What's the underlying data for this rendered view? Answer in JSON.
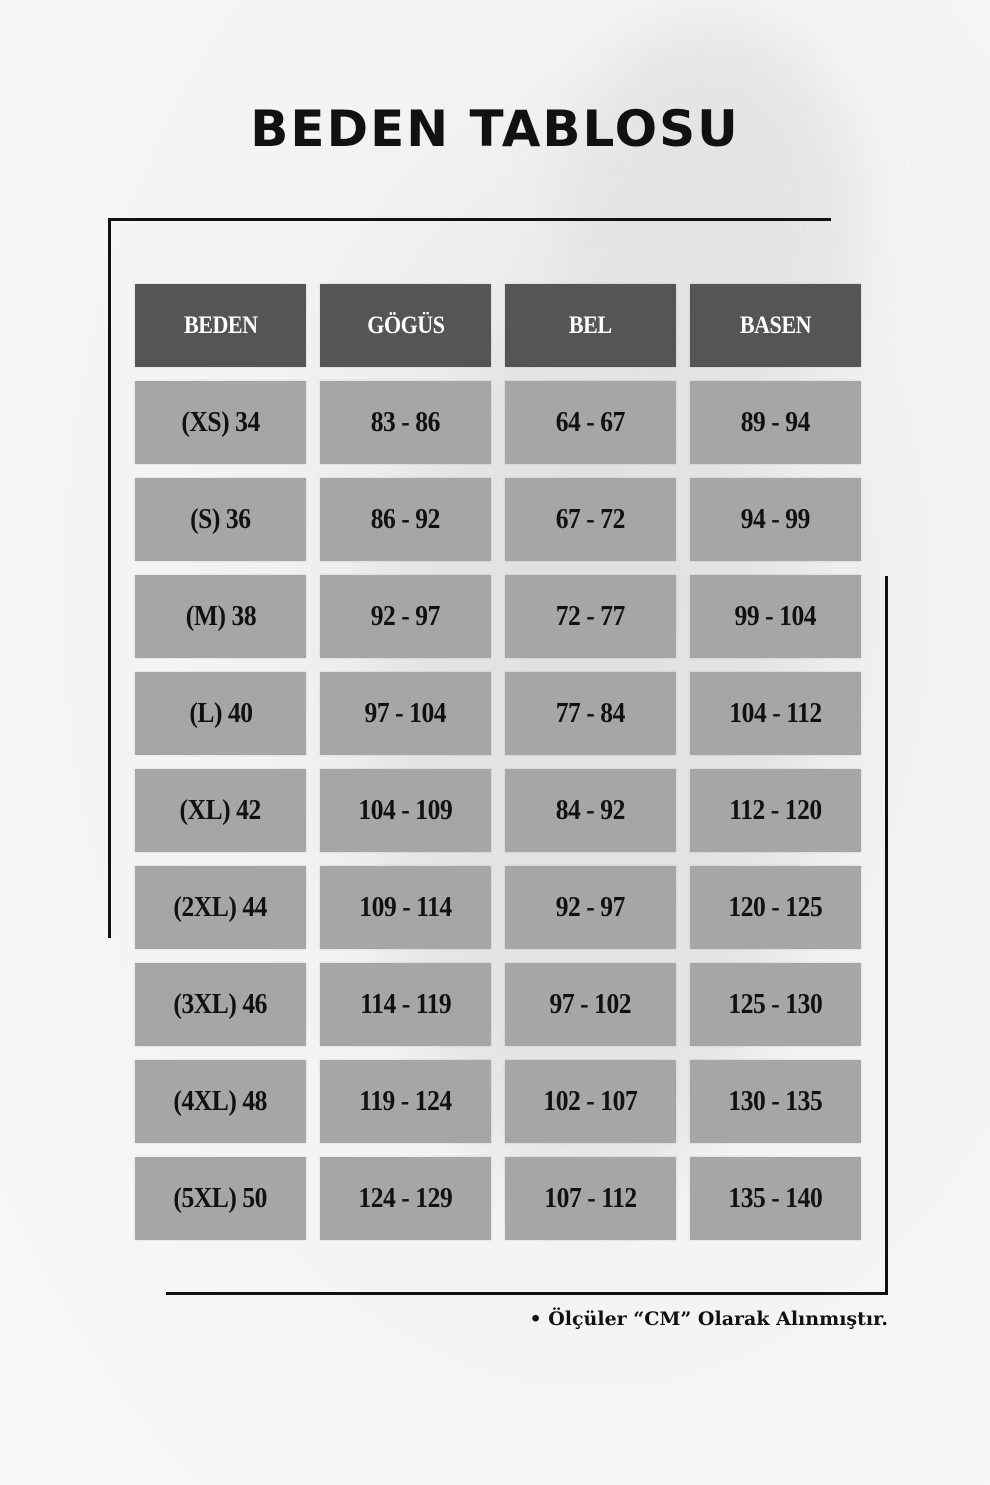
{
  "title": "BEDEN TABLOSU",
  "table": {
    "headers": [
      "BEDEN",
      "GÖGÜS",
      "BEL",
      "BASEN"
    ],
    "rows": [
      [
        "(XS) 34",
        "83 - 86",
        "64 - 67",
        "89 - 94"
      ],
      [
        "(S) 36",
        "86 - 92",
        "67 - 72",
        "94 - 99"
      ],
      [
        "(M) 38",
        "92 - 97",
        "72 - 77",
        "99 - 104"
      ],
      [
        "(L) 40",
        "97 - 104",
        "77 - 84",
        "104 - 112"
      ],
      [
        "(XL) 42",
        "104 - 109",
        "84 - 92",
        "112 - 120"
      ],
      [
        "(2XL) 44",
        "109 - 114",
        "92 - 97",
        "120 - 125"
      ],
      [
        "(3XL) 46",
        "114 - 119",
        "97 - 102",
        "125 - 130"
      ],
      [
        "(4XL) 48",
        "119 - 124",
        "102 - 107",
        "130 - 135"
      ],
      [
        "(5XL) 50",
        "124 - 129",
        "107 - 112",
        "135 - 140"
      ]
    ]
  },
  "note": "• Ölçüler “CM” Olarak Alınmıştır.",
  "colors": {
    "header_bg": "#555555",
    "cell_bg": "#a6a6a6",
    "text": "#111111"
  }
}
